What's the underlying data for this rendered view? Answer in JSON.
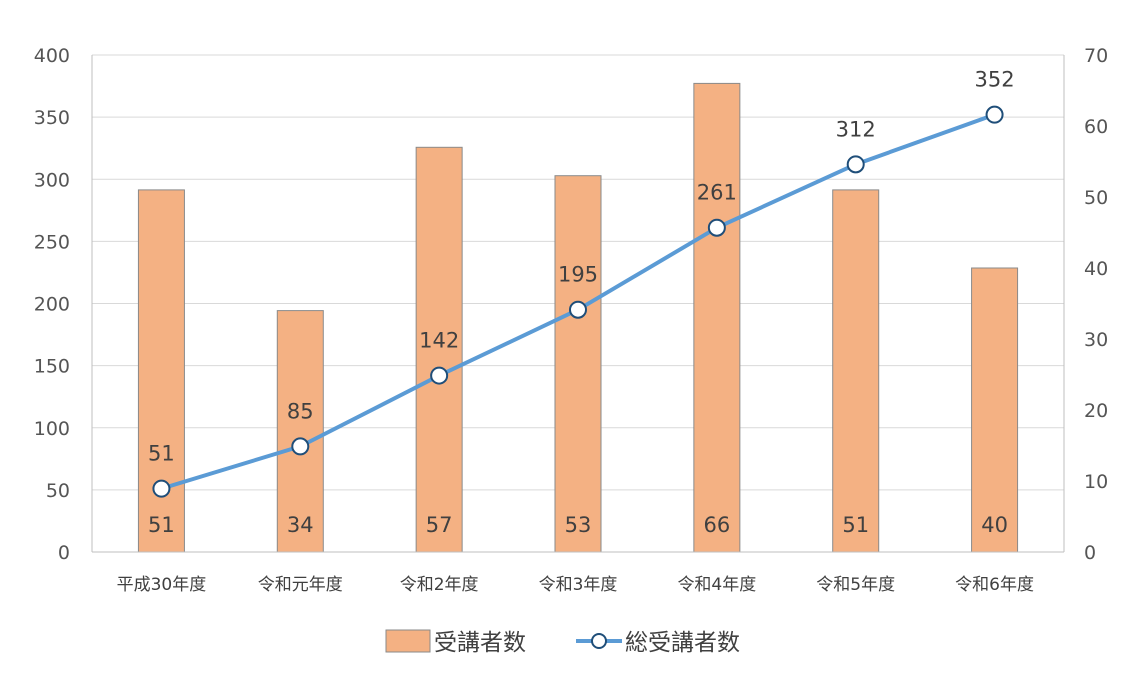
{
  "chart_data": {
    "type": "bar",
    "categories": [
      "平成30年度",
      "令和元年度",
      "令和2年度",
      "令和3年度",
      "令和4年度",
      "令和5年度",
      "令和6年度"
    ],
    "series": [
      {
        "name": "受講者数",
        "type": "bar",
        "axis": "right",
        "color": "#F4B183",
        "values": [
          51,
          34,
          57,
          53,
          66,
          51,
          40
        ]
      },
      {
        "name": "総受講者数",
        "type": "line",
        "axis": "left",
        "color": "#5B9BD5",
        "values": [
          51,
          85,
          142,
          195,
          261,
          312,
          352
        ]
      }
    ],
    "y_left": {
      "ylim": [
        0,
        400
      ],
      "ticks": [
        "0",
        "50",
        "100",
        "150",
        "200",
        "250",
        "300",
        "350",
        "400"
      ]
    },
    "y_right": {
      "ylim": [
        0,
        70
      ],
      "ticks": [
        "0",
        "10",
        "20",
        "30",
        "40",
        "50",
        "60",
        "70"
      ]
    },
    "grid": true,
    "legend_position": "bottom"
  }
}
